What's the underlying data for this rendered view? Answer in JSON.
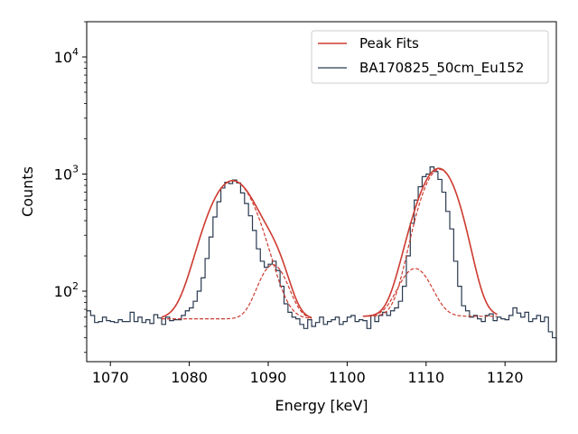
{
  "chart_data": {
    "type": "line",
    "xlabel": "Energy [keV]",
    "ylabel": "Counts",
    "xlim": [
      1067,
      1126.5
    ],
    "ylim": [
      25,
      20000
    ],
    "yscale": "log",
    "x_ticks": [
      1070,
      1080,
      1090,
      1100,
      1110,
      1120
    ],
    "y_ticks": [
      {
        "value": 100,
        "base": "10",
        "exp": "2"
      },
      {
        "value": 1000,
        "base": "10",
        "exp": "3"
      },
      {
        "value": 10000,
        "base": "10",
        "exp": "4"
      }
    ],
    "grid": false,
    "legend_position": "top-right",
    "series": [
      {
        "name": "Peak Fits",
        "color": "#cd3c32",
        "style": "solid"
      },
      {
        "name": "BA170825_50cm_Eu152",
        "color": "#2a3a50",
        "style": "step"
      }
    ],
    "spectrum": {
      "x": [
        1067.0,
        1067.5,
        1068.0,
        1068.5,
        1069.0,
        1069.5,
        1070.0,
        1070.5,
        1071.0,
        1071.5,
        1072.0,
        1072.5,
        1073.0,
        1073.5,
        1074.0,
        1074.5,
        1075.0,
        1075.5,
        1076.0,
        1076.5,
        1077.0,
        1077.5,
        1078.0,
        1078.5,
        1079.0,
        1079.5,
        1080.0,
        1080.5,
        1081.0,
        1081.5,
        1082.0,
        1082.5,
        1083.0,
        1083.5,
        1084.0,
        1084.5,
        1085.0,
        1085.5,
        1086.0,
        1086.5,
        1087.0,
        1087.5,
        1088.0,
        1088.5,
        1089.0,
        1089.5,
        1090.0,
        1090.5,
        1091.0,
        1091.5,
        1092.0,
        1092.5,
        1093.0,
        1093.5,
        1094.0,
        1094.5,
        1095.0,
        1095.5,
        1096.0,
        1096.5,
        1097.0,
        1097.5,
        1098.0,
        1098.5,
        1099.0,
        1099.5,
        1100.0,
        1100.5,
        1101.0,
        1101.5,
        1102.0,
        1102.5,
        1103.0,
        1103.5,
        1104.0,
        1104.5,
        1105.0,
        1105.5,
        1106.0,
        1106.5,
        1107.0,
        1107.5,
        1108.0,
        1108.5,
        1109.0,
        1109.5,
        1110.0,
        1110.5,
        1111.0,
        1111.5,
        1112.0,
        1112.5,
        1113.0,
        1113.5,
        1114.0,
        1114.5,
        1115.0,
        1115.5,
        1116.0,
        1116.5,
        1117.0,
        1117.5,
        1118.0,
        1118.5,
        1119.0,
        1119.5,
        1120.0,
        1120.5,
        1121.0,
        1121.5,
        1122.0,
        1122.5,
        1123.0,
        1123.5,
        1124.0,
        1124.5,
        1125.0,
        1125.5,
        1126.0
      ],
      "y": [
        68,
        62,
        54,
        55,
        60,
        56,
        55,
        54,
        57,
        55,
        55,
        66,
        55,
        60,
        54,
        57,
        53,
        63,
        59,
        52,
        60,
        56,
        57,
        57,
        62,
        68,
        72,
        82,
        100,
        130,
        190,
        290,
        430,
        580,
        760,
        850,
        830,
        890,
        840,
        690,
        560,
        440,
        330,
        230,
        180,
        160,
        170,
        180,
        150,
        110,
        78,
        66,
        60,
        58,
        52,
        48,
        57,
        50,
        54,
        60,
        52,
        55,
        57,
        60,
        52,
        55,
        60,
        62,
        55,
        57,
        56,
        48,
        62,
        55,
        62,
        66,
        62,
        68,
        72,
        82,
        110,
        200,
        380,
        600,
        780,
        950,
        1000,
        1150,
        1050,
        900,
        700,
        480,
        340,
        180,
        110,
        75,
        68,
        60,
        62,
        58,
        55,
        62,
        64,
        56,
        60,
        58,
        57,
        62,
        72,
        65,
        60,
        66,
        55,
        58,
        62,
        55,
        60,
        45,
        40
      ]
    },
    "peaks": [
      {
        "mu": 1085.5,
        "sigma": 2.6,
        "height": 820
      },
      {
        "mu": 1090.6,
        "sigma": 1.6,
        "height": 110
      },
      {
        "mu": 1111.7,
        "sigma": 2.1,
        "height": 1035
      },
      {
        "mu": 1108.6,
        "sigma": 1.8,
        "height": 95
      }
    ],
    "fit_groups": [
      {
        "range": [
          1076.5,
          1095.5
        ],
        "bg_start": 58,
        "bg_end": 58,
        "components": [
          0,
          1
        ]
      },
      {
        "range": [
          1102.0,
          1119.0
        ],
        "bg_start": 61,
        "bg_end": 61,
        "components": [
          2,
          3
        ]
      }
    ]
  }
}
